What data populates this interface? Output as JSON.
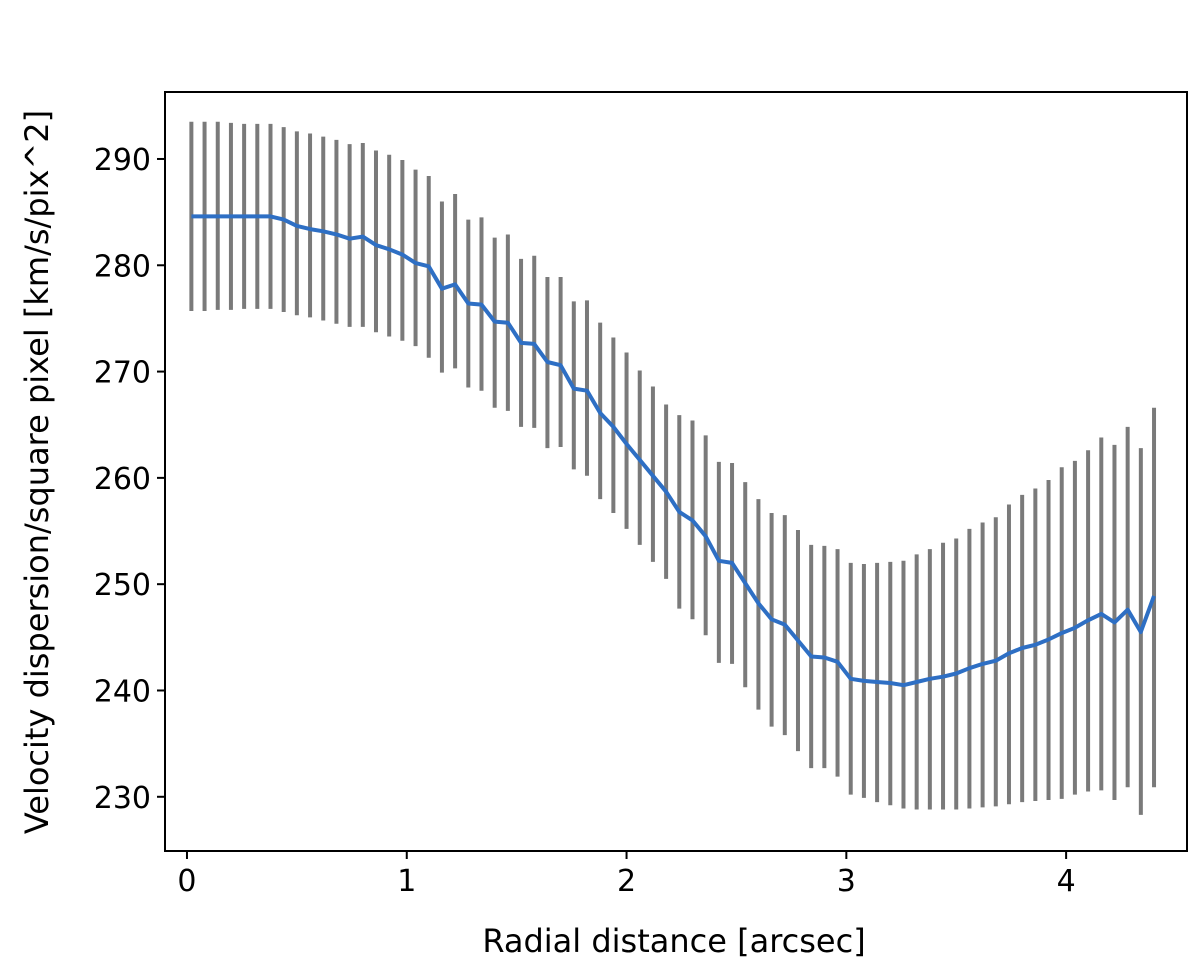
{
  "chart_data": {
    "type": "line",
    "title": "",
    "xlabel": "Radial distance [arcsec]",
    "ylabel": "Velocity dispersion/square pixel [km/s/pix^2]",
    "xlim": [
      -0.1,
      4.55
    ],
    "ylim": [
      224.9,
      296.3
    ],
    "grid": false,
    "x_ticks": [
      0,
      1,
      2,
      3,
      4
    ],
    "x_tick_labels": [
      "0",
      "1",
      "2",
      "3",
      "4"
    ],
    "y_ticks": [
      230,
      240,
      250,
      260,
      270,
      280,
      290
    ],
    "y_tick_labels": [
      "230",
      "240",
      "250",
      "260",
      "270",
      "280",
      "290"
    ],
    "line_color": "#2e6fc4",
    "errorbar_color": "#7a7a7a",
    "series": [
      {
        "x": [
          0.02,
          0.08,
          0.14,
          0.2,
          0.26,
          0.32,
          0.38,
          0.44,
          0.5,
          0.56,
          0.62,
          0.68,
          0.74,
          0.8,
          0.86,
          0.92,
          0.98,
          1.04,
          1.1,
          1.16,
          1.22,
          1.28,
          1.34,
          1.4,
          1.46,
          1.52,
          1.58,
          1.64,
          1.7,
          1.76,
          1.82,
          1.88,
          1.94,
          2.0,
          2.06,
          2.12,
          2.18,
          2.24,
          2.3,
          2.36,
          2.42,
          2.48,
          2.54,
          2.6,
          2.66,
          2.72,
          2.78,
          2.84,
          2.9,
          2.96,
          3.02,
          3.08,
          3.14,
          3.2,
          3.26,
          3.32,
          3.38,
          3.44,
          3.5,
          3.56,
          3.62,
          3.68,
          3.74,
          3.8,
          3.86,
          3.92,
          3.98,
          4.04,
          4.1,
          4.16,
          4.22,
          4.28,
          4.34,
          4.4
        ],
        "y": [
          284.6,
          284.6,
          284.6,
          284.6,
          284.6,
          284.6,
          284.6,
          284.3,
          283.7,
          283.4,
          283.2,
          282.9,
          282.5,
          282.7,
          281.9,
          281.5,
          281.0,
          280.2,
          279.9,
          277.8,
          278.2,
          276.4,
          276.3,
          274.7,
          274.6,
          272.7,
          272.6,
          270.9,
          270.6,
          268.4,
          268.2,
          266.1,
          264.8,
          263.2,
          261.7,
          260.2,
          258.7,
          256.8,
          256.0,
          254.5,
          252.2,
          252.0,
          250.1,
          248.2,
          246.7,
          246.2,
          244.7,
          243.2,
          243.1,
          242.7,
          241.1,
          240.9,
          240.8,
          240.7,
          240.5,
          240.8,
          241.1,
          241.3,
          241.6,
          242.1,
          242.5,
          242.8,
          243.5,
          244.0,
          244.3,
          244.8,
          245.4,
          245.9,
          246.6,
          247.2,
          246.4,
          247.6,
          245.5,
          248.9
        ],
        "yerr_low": [
          275.7,
          275.7,
          275.8,
          275.8,
          275.9,
          275.9,
          275.9,
          275.6,
          275.3,
          275.1,
          274.8,
          274.5,
          274.2,
          274.2,
          273.7,
          273.3,
          272.9,
          272.4,
          271.3,
          269.9,
          270.3,
          268.5,
          268.2,
          266.6,
          266.3,
          264.8,
          264.7,
          262.8,
          262.9,
          260.8,
          260.2,
          258.0,
          256.7,
          255.2,
          253.7,
          252.1,
          250.5,
          247.7,
          246.7,
          245.2,
          242.6,
          242.5,
          240.3,
          238.2,
          236.6,
          235.8,
          234.3,
          232.7,
          232.7,
          231.9,
          230.2,
          229.9,
          229.5,
          229.2,
          228.9,
          228.8,
          228.8,
          228.8,
          228.8,
          228.9,
          229.0,
          229.1,
          229.3,
          229.5,
          229.6,
          229.7,
          229.8,
          230.2,
          230.5,
          230.6,
          229.7,
          230.9,
          228.3,
          230.9
        ],
        "yerr_high": [
          293.5,
          293.5,
          293.5,
          293.4,
          293.3,
          293.3,
          293.3,
          293.0,
          292.6,
          292.4,
          292.1,
          291.8,
          291.4,
          291.5,
          290.8,
          290.4,
          289.9,
          289.0,
          288.4,
          286.0,
          286.7,
          284.3,
          284.5,
          282.6,
          282.9,
          280.6,
          280.9,
          278.9,
          278.9,
          276.6,
          276.7,
          274.6,
          273.2,
          271.8,
          270.1,
          268.6,
          266.9,
          265.9,
          265.4,
          264.0,
          261.5,
          261.4,
          259.6,
          258.0,
          256.7,
          256.5,
          255.1,
          253.7,
          253.6,
          253.3,
          252.0,
          251.9,
          252.0,
          252.1,
          252.2,
          252.8,
          253.3,
          253.9,
          254.3,
          255.2,
          255.8,
          256.3,
          257.5,
          258.4,
          259.0,
          259.8,
          261.0,
          261.6,
          262.6,
          263.8,
          263.1,
          264.8,
          262.8,
          266.6
        ]
      }
    ]
  }
}
